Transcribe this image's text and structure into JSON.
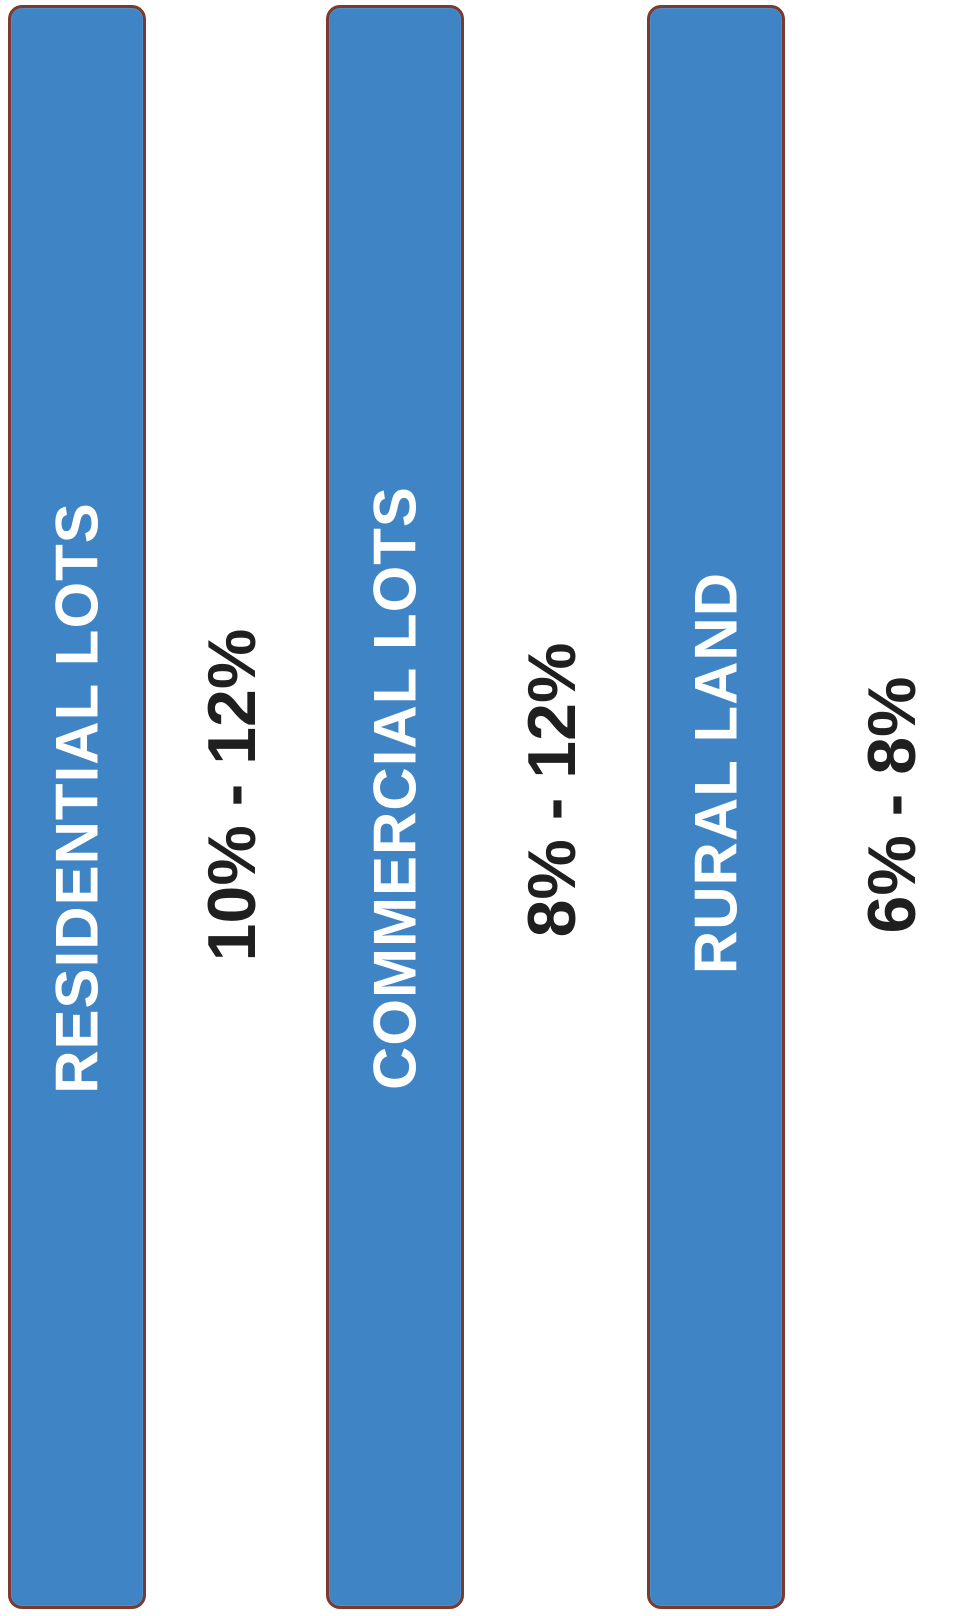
{
  "categories": [
    {
      "label": "RESIDENTIAL LOTS",
      "rate": "10% - 12%"
    },
    {
      "label": "COMMERCIAL LOTS",
      "rate": "8% - 12%"
    },
    {
      "label": "RURAL LAND",
      "rate": "6% - 8%"
    }
  ],
  "colors": {
    "bar_fill": "#3f85c6",
    "bar_border": "#7a3a2e",
    "label_text": "#ffffff",
    "rate_text": "#1f1f1f"
  }
}
